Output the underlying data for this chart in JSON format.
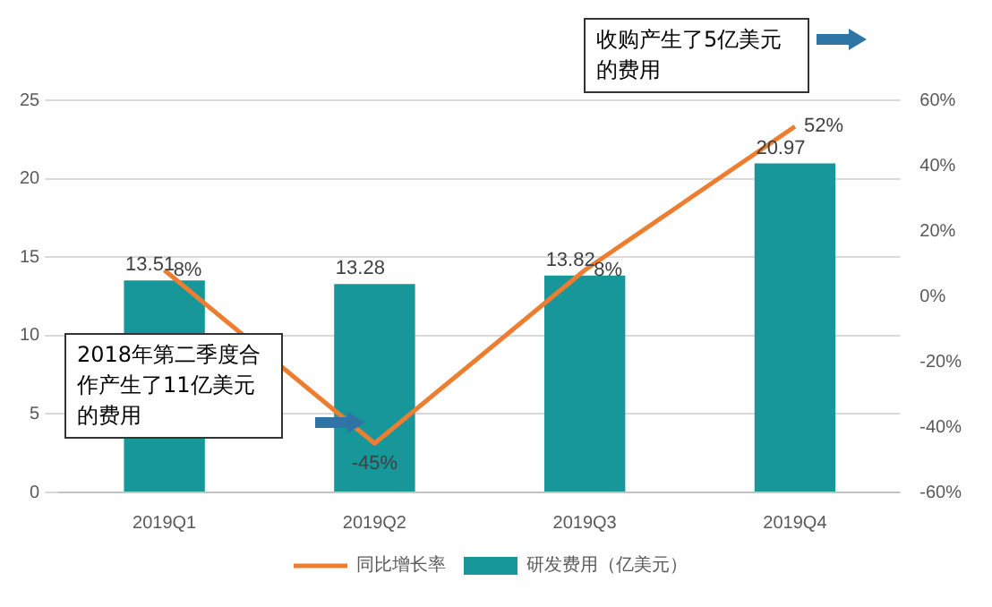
{
  "chart_data": {
    "type": "bar",
    "categories": [
      "2019Q1",
      "2019Q2",
      "2019Q3",
      "2019Q4"
    ],
    "series": [
      {
        "name": "研发费用（亿美元）",
        "color": "#17979a",
        "values": [
          13.51,
          13.28,
          13.82,
          20.97
        ]
      },
      {
        "name": "同比增长率",
        "type": "line",
        "axis": "y2",
        "color": "#ed7d31",
        "values": [
          8,
          -45,
          8,
          52
        ],
        "value_labels": [
          "8%",
          "-45%",
          "8%",
          "52%"
        ]
      }
    ],
    "ylim": [
      0,
      25
    ],
    "yticks": [
      0,
      5,
      10,
      15,
      20,
      25
    ],
    "y2lim": [
      -60,
      60
    ],
    "y2ticks": [
      {
        "value": -60,
        "label": "-60%"
      },
      {
        "value": -40,
        "label": "-40%"
      },
      {
        "value": -20,
        "label": "-20%"
      },
      {
        "value": 0,
        "label": "0%"
      },
      {
        "value": 20,
        "label": "20%"
      },
      {
        "value": 40,
        "label": "40%"
      },
      {
        "value": 60,
        "label": "60%"
      }
    ],
    "grid": "y",
    "legend": "bottom",
    "marker": "none",
    "data_labels": true,
    "annotations": [
      "2018年第二季度合作产生了11亿美元的费用",
      "收购产生了5亿美元的费用"
    ]
  }
}
